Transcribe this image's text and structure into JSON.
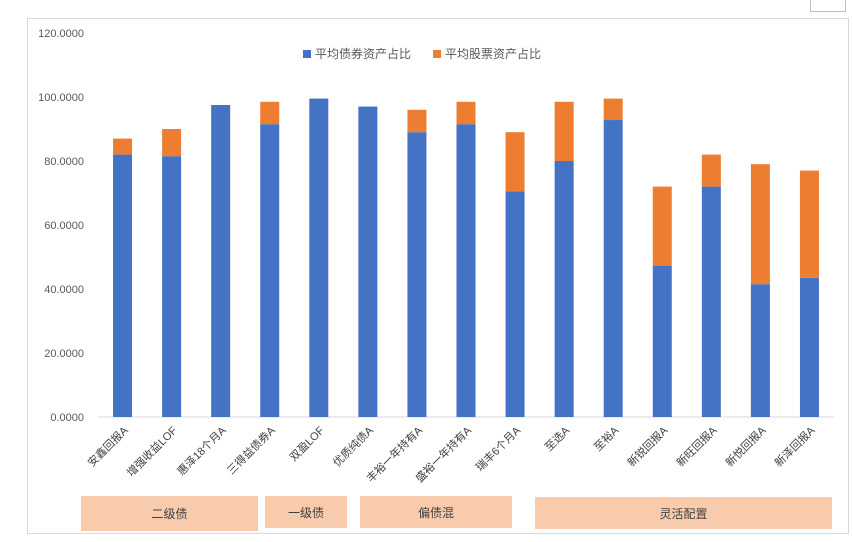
{
  "chart_data": {
    "type": "bar",
    "stacked": true,
    "categories": [
      "安鑫回报A",
      "增强收益LOF",
      "惠泽18个月A",
      "三得益债券A",
      "双盈LOF",
      "优质纯债A",
      "丰裕一年持有A",
      "盛裕一年持有A",
      "瑞丰6个月A",
      "至选A",
      "至裕A",
      "新锐回报A",
      "新旺回报A",
      "新悦回报A",
      "新泽回报A"
    ],
    "series": [
      {
        "name": "平均债券资产占比",
        "color": "#4472c4",
        "values": [
          82.0,
          81.5,
          97.5,
          91.5,
          99.5,
          97.0,
          89.0,
          91.5,
          70.5,
          80.0,
          92.8,
          47.3,
          72.0,
          41.5,
          43.5
        ]
      },
      {
        "name": "平均股票资产占比",
        "color": "#ed7d31",
        "values": [
          5.0,
          8.5,
          0.0,
          7.0,
          0.0,
          0.0,
          7.0,
          7.0,
          18.5,
          18.5,
          6.7,
          24.7,
          10.0,
          37.5,
          33.5
        ]
      }
    ],
    "yticks": [
      "0.0000",
      "20.0000",
      "40.0000",
      "60.0000",
      "80.0000",
      "100.0000",
      "120.0000"
    ],
    "ylim": [
      0,
      120
    ],
    "grid": false,
    "legend": "top-center",
    "groups": [
      {
        "label": "二级债",
        "start": 0,
        "end": 3
      },
      {
        "label": "一级债",
        "start": 4,
        "end": 4
      },
      {
        "label": "偏债混",
        "start": 5,
        "end": 8
      },
      {
        "label": "灵活配置",
        "start": 9,
        "end": 14
      }
    ]
  }
}
